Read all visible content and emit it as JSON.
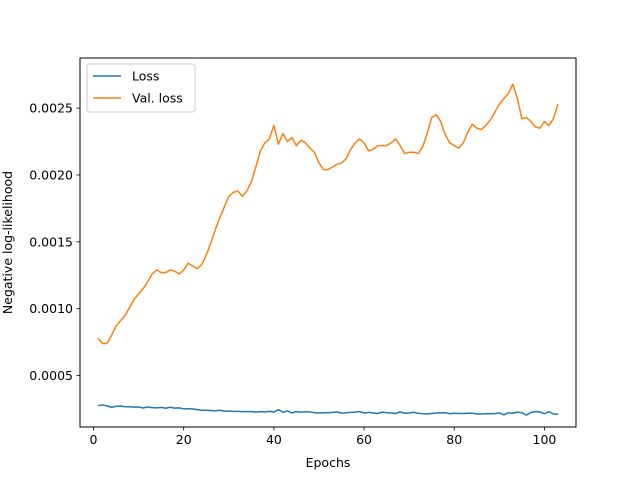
{
  "chart_data": {
    "type": "line",
    "title": "",
    "xlabel": "Epochs",
    "ylabel": "Negative log-likelihood",
    "xlim": [
      -3,
      107
    ],
    "ylim": [
      0.000115,
      0.002875
    ],
    "xticks": [
      0,
      20,
      40,
      60,
      80,
      100
    ],
    "xtick_labels": [
      "0",
      "20",
      "40",
      "60",
      "80",
      "100"
    ],
    "yticks": [
      0.0005,
      0.001,
      0.0015,
      0.002,
      0.0025
    ],
    "ytick_labels": [
      "0.0005",
      "0.0010",
      "0.0015",
      "0.0020",
      "0.0025"
    ],
    "grid": false,
    "legend": {
      "position": "top-left"
    },
    "series": [
      {
        "name": "Loss",
        "color": "#1f77b4",
        "points": [
          [
            1,
            0.000275
          ],
          [
            2,
            0.00028
          ],
          [
            3,
            0.000273
          ],
          [
            4,
            0.000262
          ],
          [
            5,
            0.00027
          ],
          [
            6,
            0.000272
          ],
          [
            7,
            0.000266
          ],
          [
            8,
            0.000266
          ],
          [
            9,
            0.000264
          ],
          [
            10,
            0.000265
          ],
          [
            11,
            0.000257
          ],
          [
            12,
            0.000265
          ],
          [
            13,
            0.00026
          ],
          [
            14,
            0.000258
          ],
          [
            15,
            0.000262
          ],
          [
            16,
            0.000255
          ],
          [
            17,
            0.000263
          ],
          [
            18,
            0.000256
          ],
          [
            19,
            0.000258
          ],
          [
            20,
            0.00025
          ],
          [
            21,
            0.000252
          ],
          [
            22,
            0.00025
          ],
          [
            23,
            0.000245
          ],
          [
            24,
            0.00024
          ],
          [
            25,
            0.00024
          ],
          [
            26,
            0.000238
          ],
          [
            27,
            0.000236
          ],
          [
            28,
            0.00024
          ],
          [
            29,
            0.000234
          ],
          [
            30,
            0.000234
          ],
          [
            31,
            0.000232
          ],
          [
            32,
            0.000232
          ],
          [
            33,
            0.00023
          ],
          [
            34,
            0.00023
          ],
          [
            35,
            0.00023
          ],
          [
            36,
            0.000226
          ],
          [
            37,
            0.00023
          ],
          [
            38,
            0.000228
          ],
          [
            39,
            0.000232
          ],
          [
            40,
            0.000227
          ],
          [
            41,
            0.000245
          ],
          [
            42,
            0.000225
          ],
          [
            43,
            0.000235
          ],
          [
            44,
            0.00022
          ],
          [
            45,
            0.00023
          ],
          [
            46,
            0.000226
          ],
          [
            47,
            0.000228
          ],
          [
            48,
            0.000228
          ],
          [
            49,
            0.000222
          ],
          [
            50,
            0.00022
          ],
          [
            51,
            0.000222
          ],
          [
            52,
            0.000222
          ],
          [
            53,
            0.000224
          ],
          [
            54,
            0.000228
          ],
          [
            55,
            0.000218
          ],
          [
            56,
            0.000222
          ],
          [
            57,
            0.000224
          ],
          [
            58,
            0.000226
          ],
          [
            59,
            0.00023
          ],
          [
            60,
            0.00022
          ],
          [
            61,
            0.000224
          ],
          [
            62,
            0.00022
          ],
          [
            63,
            0.000216
          ],
          [
            64,
            0.000226
          ],
          [
            65,
            0.000222
          ],
          [
            66,
            0.00022
          ],
          [
            67,
            0.000216
          ],
          [
            68,
            0.000228
          ],
          [
            69,
            0.000218
          ],
          [
            70,
            0.00022
          ],
          [
            71,
            0.000225
          ],
          [
            72,
            0.000218
          ],
          [
            73,
            0.000214
          ],
          [
            74,
            0.000212
          ],
          [
            75,
            0.000216
          ],
          [
            76,
            0.00022
          ],
          [
            77,
            0.000222
          ],
          [
            78,
            0.000222
          ],
          [
            79,
            0.000214
          ],
          [
            80,
            0.000218
          ],
          [
            81,
            0.000216
          ],
          [
            82,
            0.000216
          ],
          [
            83,
            0.000218
          ],
          [
            84,
            0.000218
          ],
          [
            85,
            0.000212
          ],
          [
            86,
            0.000212
          ],
          [
            87,
            0.000214
          ],
          [
            88,
            0.000214
          ],
          [
            89,
            0.000215
          ],
          [
            90,
            0.00022
          ],
          [
            91,
            0.000206
          ],
          [
            92,
            0.000222
          ],
          [
            93,
            0.000218
          ],
          [
            94,
            0.000226
          ],
          [
            95,
            0.000222
          ],
          [
            96,
            0.000204
          ],
          [
            97,
            0.000224
          ],
          [
            98,
            0.00023
          ],
          [
            99,
            0.000228
          ],
          [
            100,
            0.000215
          ],
          [
            101,
            0.00023
          ],
          [
            102,
            0.000212
          ],
          [
            103,
            0.00021
          ]
        ]
      },
      {
        "name": "Val. loss",
        "color": "#ff7f0e",
        "points": [
          [
            1,
            0.00078
          ],
          [
            2,
            0.00074
          ],
          [
            3,
            0.00074
          ],
          [
            4,
            0.0008
          ],
          [
            5,
            0.00087
          ],
          [
            6,
            0.00091
          ],
          [
            7,
            0.00095
          ],
          [
            8,
            0.00101
          ],
          [
            9,
            0.00107
          ],
          [
            10,
            0.00111
          ],
          [
            11,
            0.00115
          ],
          [
            12,
            0.0012
          ],
          [
            13,
            0.00126
          ],
          [
            14,
            0.00129
          ],
          [
            15,
            0.00127
          ],
          [
            16,
            0.00127
          ],
          [
            17,
            0.00129
          ],
          [
            18,
            0.00128
          ],
          [
            19,
            0.00126
          ],
          [
            20,
            0.00129
          ],
          [
            21,
            0.00134
          ],
          [
            22,
            0.00132
          ],
          [
            23,
            0.0013
          ],
          [
            24,
            0.00133
          ],
          [
            25,
            0.0014
          ],
          [
            26,
            0.00149
          ],
          [
            27,
            0.00159
          ],
          [
            28,
            0.00168
          ],
          [
            29,
            0.00176
          ],
          [
            30,
            0.00184
          ],
          [
            31,
            0.00187
          ],
          [
            32,
            0.00188
          ],
          [
            33,
            0.00184
          ],
          [
            34,
            0.00188
          ],
          [
            35,
            0.00195
          ],
          [
            36,
            0.00206
          ],
          [
            37,
            0.00218
          ],
          [
            38,
            0.00224
          ],
          [
            39,
            0.00227
          ],
          [
            40,
            0.00237
          ],
          [
            41,
            0.00223
          ],
          [
            42,
            0.00231
          ],
          [
            43,
            0.00225
          ],
          [
            44,
            0.00228
          ],
          [
            45,
            0.00222
          ],
          [
            46,
            0.00226
          ],
          [
            47,
            0.00224
          ],
          [
            48,
            0.0022
          ],
          [
            49,
            0.00217
          ],
          [
            50,
            0.00209
          ],
          [
            51,
            0.00204
          ],
          [
            52,
            0.00204
          ],
          [
            53,
            0.00206
          ],
          [
            54,
            0.00208
          ],
          [
            55,
            0.00209
          ],
          [
            56,
            0.00212
          ],
          [
            57,
            0.00219
          ],
          [
            58,
            0.00224
          ],
          [
            59,
            0.00227
          ],
          [
            60,
            0.00224
          ],
          [
            61,
            0.00218
          ],
          [
            62,
            0.00219
          ],
          [
            63,
            0.00222
          ],
          [
            64,
            0.00222
          ],
          [
            65,
            0.00222
          ],
          [
            66,
            0.00224
          ],
          [
            67,
            0.00227
          ],
          [
            68,
            0.00222
          ],
          [
            69,
            0.00216
          ],
          [
            70,
            0.00217
          ],
          [
            71,
            0.00217
          ],
          [
            72,
            0.00216
          ],
          [
            73,
            0.00221
          ],
          [
            74,
            0.00231
          ],
          [
            75,
            0.00243
          ],
          [
            76,
            0.00245
          ],
          [
            77,
            0.0024
          ],
          [
            78,
            0.0023
          ],
          [
            79,
            0.00224
          ],
          [
            80,
            0.00222
          ],
          [
            81,
            0.0022
          ],
          [
            82,
            0.00224
          ],
          [
            83,
            0.00232
          ],
          [
            84,
            0.00238
          ],
          [
            85,
            0.00235
          ],
          [
            86,
            0.00234
          ],
          [
            87,
            0.00237
          ],
          [
            88,
            0.00241
          ],
          [
            89,
            0.00247
          ],
          [
            90,
            0.00253
          ],
          [
            91,
            0.00257
          ],
          [
            92,
            0.00261
          ],
          [
            93,
            0.00268
          ],
          [
            94,
            0.00257
          ],
          [
            95,
            0.00242
          ],
          [
            96,
            0.00243
          ],
          [
            97,
            0.0024
          ],
          [
            98,
            0.00236
          ],
          [
            99,
            0.00235
          ],
          [
            100,
            0.0024
          ],
          [
            101,
            0.00237
          ],
          [
            102,
            0.00242
          ],
          [
            103,
            0.00253
          ]
        ]
      }
    ]
  }
}
